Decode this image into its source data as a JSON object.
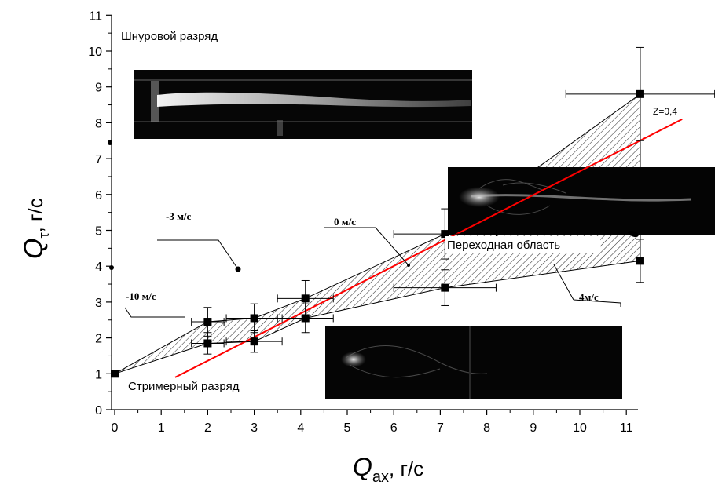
{
  "chart_data": {
    "type": "scatter",
    "title": "",
    "xlabel": {
      "main": "Q",
      "sub": "ax",
      "unit": ",  г/с"
    },
    "ylabel": {
      "main": "Q",
      "sub": "τ",
      "unit": ",  г/с"
    },
    "xlim": [
      -0.2,
      11.8
    ],
    "ylim": [
      0,
      11
    ],
    "x_ticks": [
      "0",
      "1",
      "2",
      "3",
      "4",
      "5",
      "6",
      "7",
      "8",
      "9",
      "10",
      "11"
    ],
    "y_ticks": [
      "0",
      "1",
      "2",
      "3",
      "4",
      "5",
      "6",
      "7",
      "8",
      "9",
      "10",
      "11"
    ],
    "grid": false,
    "series": [
      {
        "marker": "square",
        "color": "#000000",
        "points": [
          {
            "x": 0,
            "y": 1.0
          },
          {
            "x": 2,
            "y": 2.45,
            "xerr": 0.35,
            "yerr": 0.4
          },
          {
            "x": 2,
            "y": 1.85,
            "xerr": 0.35,
            "yerr": 0.3
          },
          {
            "x": 3,
            "y": 2.55,
            "xerr": 0.6,
            "yerr": 0.4
          },
          {
            "x": 3,
            "y": 1.9,
            "xerr": 0.6,
            "yerr": 0.3
          },
          {
            "x": 4.1,
            "y": 3.1,
            "xerr": 0.6,
            "yerr": 0.5
          },
          {
            "x": 4.1,
            "y": 2.55,
            "xerr": 0.6,
            "yerr": 0.4
          },
          {
            "x": 7.1,
            "y": 4.9,
            "xerr": 1.1,
            "yerr": 0.7
          },
          {
            "x": 7.1,
            "y": 3.4,
            "xerr": 1.1,
            "yerr": 0.5
          },
          {
            "x": 11.3,
            "y": 8.8,
            "xerr": 1.6,
            "yerr": 1.3
          },
          {
            "x": 11.3,
            "y": 4.15,
            "xerr": 0,
            "yerr": 0.6
          }
        ]
      }
    ],
    "fit_line": {
      "label": "Z=0,4",
      "color": "#ff0000",
      "x": [
        1.3,
        12.2
      ],
      "y": [
        0.9,
        8.1
      ]
    },
    "band": {
      "upper": [
        [
          0,
          1.0
        ],
        [
          2,
          2.45
        ],
        [
          3,
          2.55
        ],
        [
          4.1,
          3.1
        ],
        [
          7.1,
          4.9
        ],
        [
          11.3,
          8.8
        ]
      ],
      "lower": [
        [
          0,
          1.0
        ],
        [
          2,
          1.85
        ],
        [
          3,
          1.9
        ],
        [
          4.1,
          2.55
        ],
        [
          7.1,
          3.4
        ],
        [
          11.3,
          4.15
        ]
      ]
    },
    "annotations": {
      "cord": "Шнуровой разряд",
      "streamer": "Стримерный разряд",
      "transition": "Переходная область",
      "v_minus3": "-3 м/с",
      "v_minus10": "-10 м/с",
      "v_0": "0 м/с",
      "v_4": "4м/с",
      "z_label": "Z=0,4"
    },
    "images": [
      {
        "name": "cord-discharge-photo"
      },
      {
        "name": "transition-discharge-photo"
      },
      {
        "name": "streamer-discharge-photo"
      }
    ]
  }
}
